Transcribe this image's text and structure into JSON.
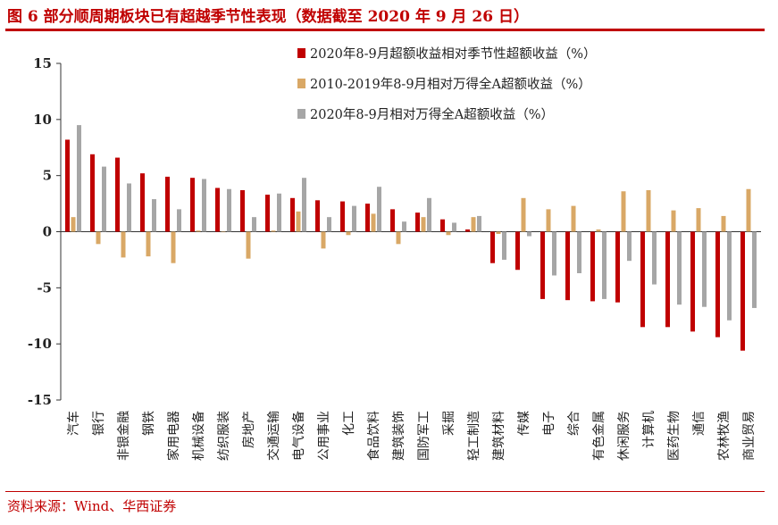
{
  "header": {
    "title": "图 6 部分顺周期板块已有超越季节性表现（数据截至 2020 年 9 月 26 日）"
  },
  "footer": {
    "source": "资料来源：Wind、华西证券"
  },
  "colors": {
    "accent": "#c00000",
    "series_2020_vs_season": "#c00000",
    "series_2010_2019": "#d9a866",
    "series_2020_vs_wind": "#a6a6a6"
  },
  "chart_data": {
    "type": "bar",
    "ylim": [
      -15,
      15
    ],
    "yticks": [
      15,
      10,
      5,
      0,
      -5,
      -10,
      -15
    ],
    "legend_position": "top-right",
    "categories": [
      "汽车",
      "银行",
      "非银金融",
      "钢铁",
      "家用电器",
      "机械设备",
      "纺织服装",
      "房地产",
      "交通运输",
      "电气设备",
      "公用事业",
      "化工",
      "食品饮料",
      "建筑装饰",
      "国防军工",
      "采掘",
      "轻工制造",
      "建筑材料",
      "传媒",
      "电子",
      "综合",
      "有色金属",
      "休闲服务",
      "计算机",
      "医药生物",
      "通信",
      "农林牧渔",
      "商业贸易"
    ],
    "series": [
      {
        "name": "2020年8-9月超额收益相对季节性超额收益（%）",
        "values": [
          8.2,
          6.9,
          6.6,
          5.2,
          4.9,
          4.8,
          3.9,
          3.7,
          3.3,
          3.0,
          2.8,
          2.7,
          2.5,
          2.0,
          1.7,
          1.1,
          0.2,
          -2.8,
          -3.4,
          -6.0,
          -6.1,
          -6.2,
          -6.3,
          -8.5,
          -8.5,
          -8.9,
          -9.4,
          -10.6
        ]
      },
      {
        "name": "2010-2019年8-9月相对万得全A超额收益（%）",
        "values": [
          1.3,
          -1.1,
          -2.3,
          -2.2,
          -2.8,
          0.1,
          0.0,
          -2.4,
          0.1,
          1.8,
          -1.5,
          -0.3,
          1.6,
          -1.1,
          1.3,
          -0.3,
          1.3,
          -0.2,
          3.0,
          2.0,
          2.3,
          0.2,
          3.6,
          3.7,
          1.9,
          2.1,
          1.4,
          3.8
        ]
      },
      {
        "name": "2020年8-9月相对万得全A超额收益（%）",
        "values": [
          9.5,
          5.8,
          4.3,
          2.9,
          2.0,
          4.7,
          3.8,
          1.3,
          3.4,
          4.8,
          1.3,
          2.3,
          4.0,
          0.9,
          3.0,
          0.8,
          1.4,
          -2.5,
          -0.4,
          -3.9,
          -3.7,
          -6.0,
          -2.6,
          -4.7,
          -6.5,
          -6.7,
          -7.9,
          -6.8
        ]
      }
    ]
  }
}
